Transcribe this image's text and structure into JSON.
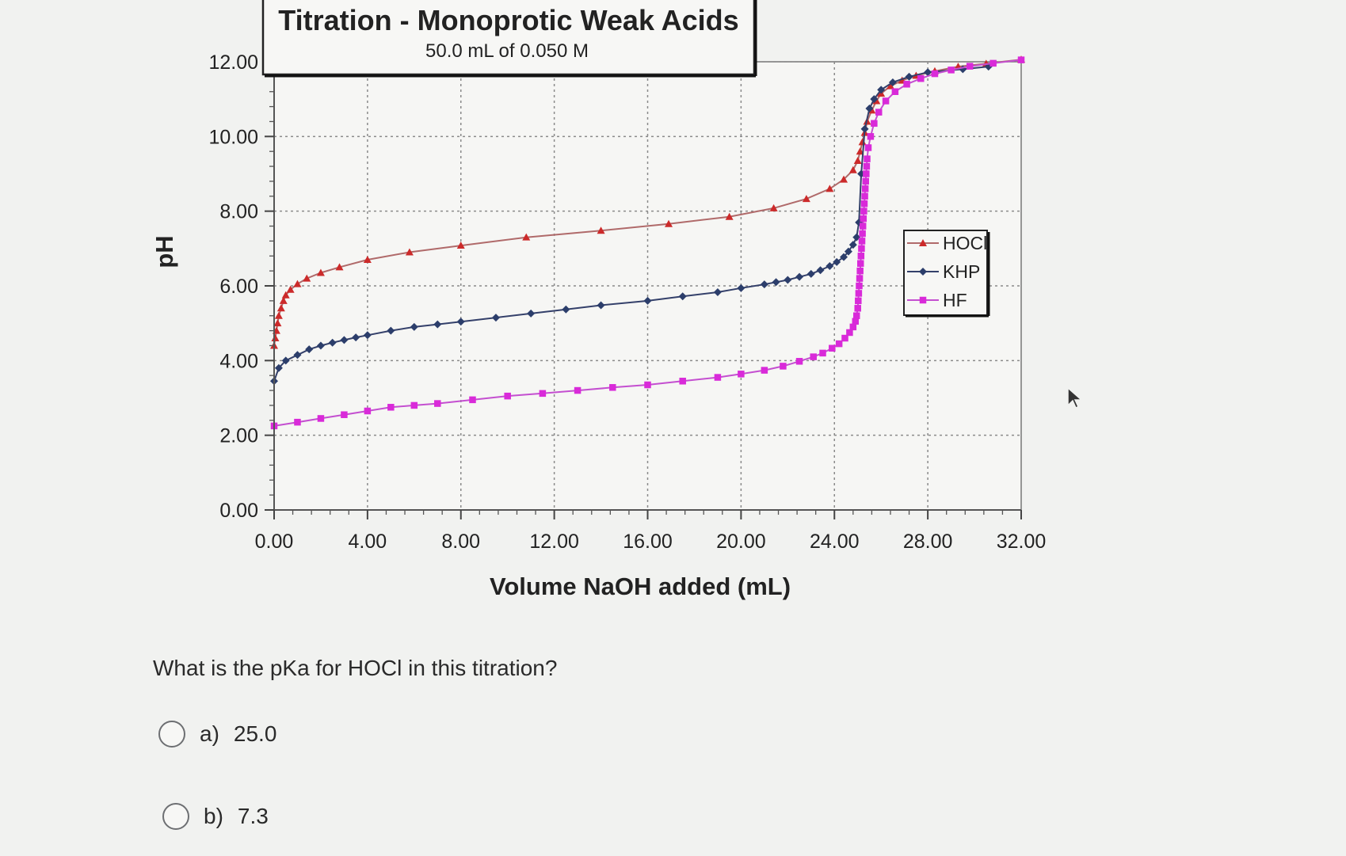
{
  "chart_data": {
    "type": "line",
    "title": "Titration - Monoprotic Weak Acids",
    "subtitle": "50.0 mL of 0.050 M",
    "xlabel": "Volume NaOH added (mL)",
    "ylabel": "pH",
    "xlim": [
      0,
      32
    ],
    "ylim": [
      0,
      12
    ],
    "x_ticks": [
      "0.00",
      "4.00",
      "8.00",
      "12.00",
      "16.00",
      "20.00",
      "24.00",
      "28.00",
      "32.00"
    ],
    "y_ticks": [
      "0.00",
      "2.00",
      "4.00",
      "6.00",
      "8.00",
      "10.00",
      "12.00"
    ],
    "grid": true,
    "legend_position": "right",
    "series": [
      {
        "name": "HOCl",
        "color": "#cc2a2a",
        "line_color": "#b06a6a",
        "marker": "triangle",
        "x": [
          0,
          0.05,
          0.1,
          0.15,
          0.2,
          0.3,
          0.4,
          0.5,
          0.7,
          1.0,
          1.4,
          2.0,
          2.8,
          4.0,
          5.8,
          8.0,
          10.8,
          14.0,
          16.9,
          19.5,
          21.4,
          22.8,
          23.8,
          24.4,
          24.8,
          25.0,
          25.1,
          25.2,
          25.3,
          25.4,
          25.6,
          25.8,
          26.0,
          26.4,
          26.9,
          27.5,
          28.3,
          29.3,
          30.5,
          32.0
        ],
        "y": [
          4.4,
          4.6,
          4.8,
          5.0,
          5.2,
          5.4,
          5.6,
          5.75,
          5.9,
          6.05,
          6.2,
          6.35,
          6.5,
          6.7,
          6.9,
          7.08,
          7.3,
          7.48,
          7.66,
          7.85,
          8.08,
          8.33,
          8.6,
          8.85,
          9.1,
          9.35,
          9.6,
          9.85,
          10.1,
          10.4,
          10.7,
          10.95,
          11.15,
          11.35,
          11.5,
          11.63,
          11.75,
          11.87,
          11.95,
          12.06
        ]
      },
      {
        "name": "KHP",
        "color": "#2c3e6b",
        "line_color": "#34406a",
        "marker": "diamond",
        "x": [
          0,
          0.2,
          0.5,
          1.0,
          1.5,
          2.0,
          2.5,
          3.0,
          3.5,
          4.0,
          5.0,
          6.0,
          7.0,
          8.0,
          9.5,
          11.0,
          12.5,
          14.0,
          16.0,
          17.5,
          19.0,
          20.0,
          21.0,
          21.5,
          22.0,
          22.5,
          23.0,
          23.4,
          23.8,
          24.1,
          24.4,
          24.6,
          24.8,
          24.95,
          25.05,
          25.15,
          25.3,
          25.5,
          25.7,
          26.0,
          26.5,
          27.2,
          28.0,
          29.5,
          30.6
        ],
        "y": [
          3.45,
          3.8,
          4.0,
          4.15,
          4.3,
          4.4,
          4.48,
          4.55,
          4.62,
          4.68,
          4.8,
          4.9,
          4.97,
          5.04,
          5.15,
          5.26,
          5.37,
          5.48,
          5.6,
          5.72,
          5.83,
          5.94,
          6.04,
          6.1,
          6.16,
          6.24,
          6.32,
          6.42,
          6.53,
          6.64,
          6.77,
          6.92,
          7.1,
          7.3,
          7.7,
          9.0,
          10.2,
          10.75,
          11.0,
          11.25,
          11.45,
          11.6,
          11.72,
          11.8,
          11.87
        ]
      },
      {
        "name": "HF",
        "color": "#d92ad9",
        "line_color": "#c44fd0",
        "marker": "square",
        "x": [
          0,
          1.0,
          2.0,
          3.0,
          4.0,
          5.0,
          6.0,
          7.0,
          8.5,
          10.0,
          11.5,
          13.0,
          14.5,
          16.0,
          17.5,
          19.0,
          20.0,
          21.0,
          21.8,
          22.5,
          23.1,
          23.5,
          23.9,
          24.2,
          24.45,
          24.65,
          24.8,
          24.9,
          24.95,
          25.0,
          25.02,
          25.04,
          25.06,
          25.08,
          25.1,
          25.12,
          25.14,
          25.16,
          25.18,
          25.2,
          25.22,
          25.24,
          25.26,
          25.28,
          25.3,
          25.32,
          25.34,
          25.36,
          25.38,
          25.4,
          25.45,
          25.55,
          25.7,
          25.9,
          26.2,
          26.6,
          27.1,
          27.7,
          28.3,
          29.0,
          29.8,
          30.8,
          32.0
        ],
        "y": [
          2.25,
          2.35,
          2.45,
          2.55,
          2.65,
          2.75,
          2.8,
          2.85,
          2.95,
          3.05,
          3.12,
          3.2,
          3.28,
          3.35,
          3.45,
          3.55,
          3.64,
          3.74,
          3.85,
          3.98,
          4.1,
          4.2,
          4.33,
          4.45,
          4.6,
          4.75,
          4.9,
          5.05,
          5.2,
          5.4,
          5.6,
          5.8,
          6.0,
          6.2,
          6.4,
          6.6,
          6.8,
          7.0,
          7.2,
          7.4,
          7.6,
          7.8,
          8.0,
          8.2,
          8.4,
          8.6,
          8.8,
          9.0,
          9.2,
          9.4,
          9.7,
          10.0,
          10.35,
          10.65,
          10.95,
          11.2,
          11.4,
          11.55,
          11.68,
          11.78,
          11.88,
          11.96,
          12.05
        ]
      }
    ]
  },
  "question": {
    "text": "What is the pKa for HOCl in this titration?",
    "options": [
      {
        "letter": "a)",
        "value": "25.0"
      },
      {
        "letter": "b)",
        "value": "7.3"
      }
    ]
  }
}
